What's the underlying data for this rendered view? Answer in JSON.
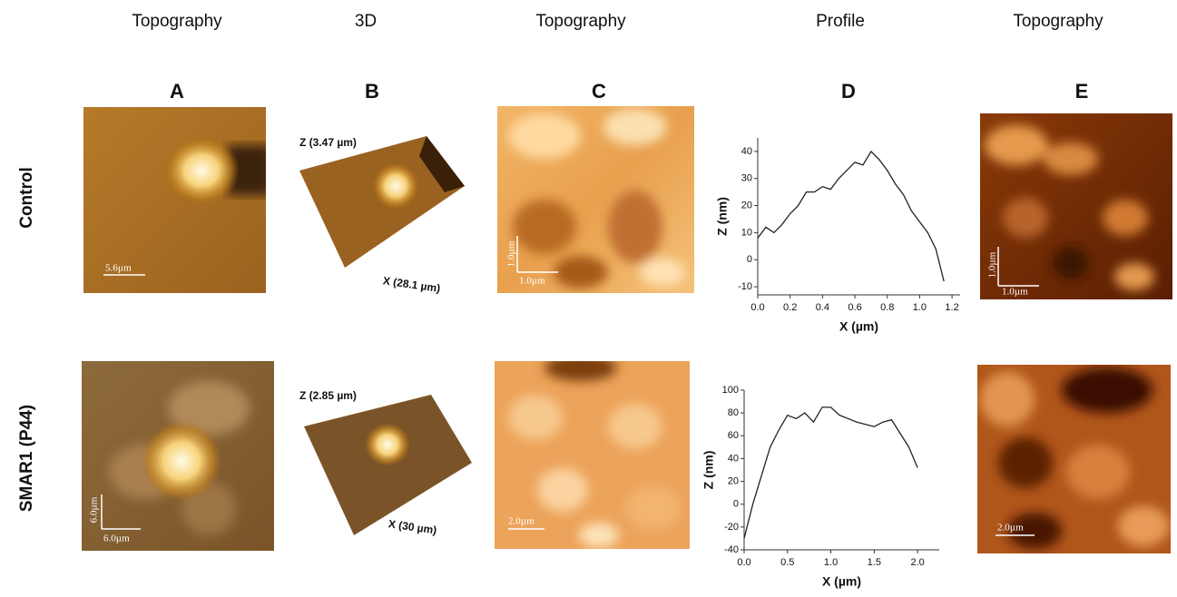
{
  "columns": [
    "Topography",
    "3D",
    "Topography",
    "Profile",
    "Topography"
  ],
  "panels": [
    "A",
    "B",
    "C",
    "D",
    "E"
  ],
  "rows": [
    {
      "label": "Control",
      "scale_a": [
        "5.6µm"
      ],
      "z": "Z (3.47 µm)",
      "x": "X (28.1 µm)",
      "scale_c": [
        "1.0µm",
        "1.0µm"
      ],
      "scale_e": [
        "1.0µm",
        "1.0µm"
      ]
    },
    {
      "label": "SMAR1 (P44)",
      "scale_a": [
        "6.0µm",
        "6.0µm"
      ],
      "z": "Z (2.85 µm)",
      "x": "X (30 µm)",
      "scale_c": [
        "2.0µm"
      ],
      "scale_e": [
        "2.0µm"
      ]
    }
  ],
  "chart_data": [
    {
      "type": "line",
      "x_label": "X (µm)",
      "y_label": "Z (nm)",
      "color": "#222",
      "x": [
        0,
        0.05,
        0.1,
        0.15,
        0.2,
        0.25,
        0.3,
        0.35,
        0.4,
        0.45,
        0.5,
        0.55,
        0.6,
        0.65,
        0.7,
        0.75,
        0.8,
        0.85,
        0.9,
        0.95,
        1.0,
        1.05,
        1.1,
        1.15
      ],
      "values": [
        8,
        12,
        10,
        13,
        17,
        20,
        25,
        25,
        27,
        26,
        30,
        33,
        36,
        35,
        40,
        37,
        33,
        28,
        24,
        18,
        14,
        10,
        4,
        -8
      ],
      "xlim": [
        0,
        1.25
      ],
      "ylim": [
        -13,
        45
      ],
      "xticks": [
        {
          "value": 0,
          "label": "0.0"
        },
        {
          "value": 0.2,
          "label": "0.2"
        },
        {
          "value": 0.4,
          "label": "0.4"
        },
        {
          "value": 0.6,
          "label": "0.6"
        },
        {
          "value": 0.8,
          "label": "0.8"
        },
        {
          "value": 1,
          "label": "1.0"
        },
        {
          "value": 1.2,
          "label": "1.2"
        }
      ],
      "yticks": [
        -10,
        0,
        10,
        20,
        30,
        40
      ]
    },
    {
      "type": "line",
      "x_label": "X (µm)",
      "y_label": "Z (nm)",
      "color": "#222",
      "x": [
        0,
        0.1,
        0.2,
        0.3,
        0.4,
        0.5,
        0.6,
        0.7,
        0.8,
        0.9,
        1.0,
        1.1,
        1.2,
        1.3,
        1.4,
        1.5,
        1.6,
        1.7,
        1.8,
        1.9,
        2.0
      ],
      "values": [
        -30,
        0,
        25,
        50,
        65,
        78,
        75,
        80,
        72,
        85,
        85,
        78,
        75,
        72,
        70,
        68,
        72,
        74,
        62,
        50,
        32
      ],
      "xlim": [
        0,
        2.25
      ],
      "ylim": [
        -40,
        100
      ],
      "xticks": [
        {
          "value": 0,
          "label": "0.0"
        },
        {
          "value": 0.5,
          "label": "0.5"
        },
        {
          "value": 1,
          "label": "1.0"
        },
        {
          "value": 1.5,
          "label": "1.5"
        },
        {
          "value": 2,
          "label": "2.0"
        }
      ],
      "yticks": [
        -40,
        -20,
        0,
        20,
        40,
        60,
        80,
        100
      ]
    }
  ]
}
